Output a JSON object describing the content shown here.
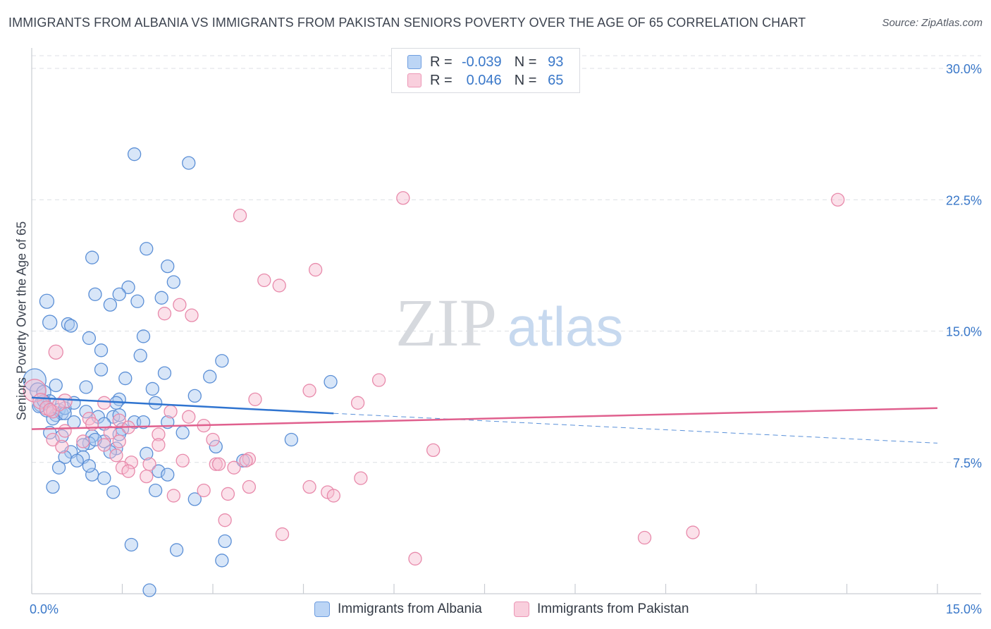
{
  "title": "IMMIGRANTS FROM ALBANIA VS IMMIGRANTS FROM PAKISTAN SENIORS POVERTY OVER THE AGE OF 65 CORRELATION CHART",
  "source": "Source: ZipAtlas.com",
  "watermark": {
    "zip": "ZIP",
    "atlas": "atlas"
  },
  "legend": {
    "series1": {
      "r_label": "R =",
      "r_value": "-0.039",
      "n_label": "N =",
      "n_value": "93"
    },
    "series2": {
      "r_label": "R =",
      "r_value": "0.046",
      "n_label": "N =",
      "n_value": "65"
    }
  },
  "bottom_legend": {
    "albania": "Immigrants from Albania",
    "pakistan": "Immigrants from Pakistan"
  },
  "colors": {
    "albania_fill": "#a8c8f0",
    "albania_stroke": "#5b8fd6",
    "albania_line": "#2f74d0",
    "pakistan_fill": "#f7bcd0",
    "pakistan_stroke": "#e88aab",
    "pakistan_line": "#e0608e",
    "axis_text": "#3a78c9",
    "grid": "#dcdfe4"
  },
  "chart_data": {
    "type": "scatter",
    "title": "IMMIGRANTS FROM ALBANIA VS IMMIGRANTS FROM PAKISTAN SENIORS POVERTY OVER THE AGE OF 65 CORRELATION CHART",
    "xlabel": "",
    "ylabel": "Seniors Poverty Over the Age of 65",
    "xlim": [
      0,
      15
    ],
    "ylim": [
      0,
      30
    ],
    "x_ticks": [
      0,
      1.5,
      3,
      4.5,
      6,
      7.5,
      9,
      10.5,
      12,
      13.5,
      15
    ],
    "x_tick_labels": {
      "0": "0.0%",
      "15": "15.0%"
    },
    "y_ticks": [
      7.5,
      15,
      22.5,
      30
    ],
    "y_tick_labels": [
      "7.5%",
      "15.0%",
      "22.5%",
      "30.0%"
    ],
    "series": [
      {
        "name": "Immigrants from Albania",
        "r": -0.039,
        "n": 93,
        "trend": {
          "x": [
            0,
            5
          ],
          "y": [
            11.2,
            10.3
          ],
          "dashed_to": [
            15,
            8.6
          ]
        },
        "points": [
          [
            0.05,
            12.2,
            16
          ],
          [
            0.1,
            11.6,
            11
          ],
          [
            0.15,
            10.8,
            10
          ],
          [
            0.2,
            11.5,
            10
          ],
          [
            0.25,
            10.5,
            10
          ],
          [
            0.12,
            10.7,
            9
          ],
          [
            0.3,
            11.0,
            9
          ],
          [
            0.35,
            10.4,
            9
          ],
          [
            0.4,
            10.2,
            9
          ],
          [
            0.45,
            10.5,
            9
          ],
          [
            0.5,
            10.3,
            9
          ],
          [
            0.55,
            10.6,
            9
          ],
          [
            1.7,
            25.1,
            9
          ],
          [
            2.6,
            24.6,
            9
          ],
          [
            1.9,
            19.7,
            9
          ],
          [
            1.0,
            19.2,
            9
          ],
          [
            2.25,
            18.7,
            9
          ],
          [
            1.6,
            17.5,
            9
          ],
          [
            2.35,
            17.8,
            9
          ],
          [
            0.25,
            16.7,
            10
          ],
          [
            1.05,
            17.1,
            9
          ],
          [
            1.45,
            17.1,
            9
          ],
          [
            1.75,
            16.7,
            9
          ],
          [
            2.15,
            16.9,
            9
          ],
          [
            1.3,
            16.5,
            9
          ],
          [
            0.3,
            15.5,
            10
          ],
          [
            0.6,
            15.4,
            9
          ],
          [
            0.65,
            15.3,
            9
          ],
          [
            0.95,
            14.6,
            9
          ],
          [
            1.85,
            14.7,
            9
          ],
          [
            1.15,
            13.9,
            9
          ],
          [
            1.8,
            13.6,
            9
          ],
          [
            3.15,
            13.3,
            9
          ],
          [
            1.15,
            12.8,
            9
          ],
          [
            2.2,
            12.6,
            9
          ],
          [
            2.95,
            12.4,
            9
          ],
          [
            1.55,
            12.3,
            9
          ],
          [
            0.4,
            11.9,
            9
          ],
          [
            0.9,
            11.8,
            9
          ],
          [
            2.0,
            11.7,
            9
          ],
          [
            4.95,
            12.1,
            9
          ],
          [
            2.7,
            11.3,
            9
          ],
          [
            1.45,
            11.1,
            9
          ],
          [
            1.4,
            10.9,
            9
          ],
          [
            2.05,
            10.9,
            9
          ],
          [
            0.9,
            10.4,
            9
          ],
          [
            0.55,
            10.3,
            9
          ],
          [
            1.1,
            10.1,
            9
          ],
          [
            1.35,
            10.1,
            9
          ],
          [
            0.35,
            10.0,
            9
          ],
          [
            0.7,
            9.8,
            9
          ],
          [
            1.7,
            9.8,
            9
          ],
          [
            1.85,
            9.8,
            9
          ],
          [
            2.25,
            9.8,
            9
          ],
          [
            1.2,
            9.7,
            9
          ],
          [
            1.5,
            9.4,
            9
          ],
          [
            0.3,
            9.2,
            9
          ],
          [
            0.5,
            9.0,
            9
          ],
          [
            1.0,
            9.0,
            9
          ],
          [
            1.45,
            9.1,
            9
          ],
          [
            1.2,
            8.7,
            9
          ],
          [
            0.95,
            8.6,
            9
          ],
          [
            0.85,
            8.5,
            9
          ],
          [
            1.4,
            8.3,
            9
          ],
          [
            3.05,
            8.4,
            9
          ],
          [
            4.3,
            8.8,
            9
          ],
          [
            0.65,
            8.1,
            9
          ],
          [
            1.3,
            8.1,
            9
          ],
          [
            1.9,
            8.0,
            9
          ],
          [
            0.85,
            7.8,
            9
          ],
          [
            0.55,
            7.8,
            9
          ],
          [
            0.75,
            7.6,
            9
          ],
          [
            3.5,
            7.6,
            9
          ],
          [
            0.45,
            7.2,
            9
          ],
          [
            2.1,
            7.0,
            9
          ],
          [
            1.0,
            6.8,
            9
          ],
          [
            2.25,
            6.8,
            9
          ],
          [
            1.2,
            6.6,
            9
          ],
          [
            0.35,
            6.1,
            9
          ],
          [
            1.35,
            5.8,
            9
          ],
          [
            2.05,
            5.9,
            9
          ],
          [
            2.7,
            5.4,
            9
          ],
          [
            1.65,
            2.8,
            9
          ],
          [
            2.4,
            2.5,
            9
          ],
          [
            3.2,
            3.0,
            9
          ],
          [
            3.15,
            1.9,
            9
          ],
          [
            1.95,
            0.2,
            9
          ],
          [
            1.45,
            10.2,
            9
          ],
          [
            0.2,
            11.0,
            9
          ],
          [
            1.05,
            8.8,
            9
          ],
          [
            0.7,
            10.9,
            9
          ],
          [
            2.5,
            9.2,
            9
          ],
          [
            0.95,
            7.3,
            9
          ]
        ]
      },
      {
        "name": "Immigrants from Pakistan",
        "r": 0.046,
        "n": 65,
        "trend": {
          "x": [
            0,
            15
          ],
          "y": [
            9.4,
            10.6
          ]
        },
        "points": [
          [
            0.05,
            11.6,
            16
          ],
          [
            0.4,
            13.8,
            10
          ],
          [
            0.15,
            11.0,
            11
          ],
          [
            0.25,
            10.6,
            10
          ],
          [
            0.35,
            10.4,
            9
          ],
          [
            0.55,
            11.0,
            10
          ],
          [
            0.45,
            10.8,
            9
          ],
          [
            0.3,
            10.5,
            9
          ],
          [
            6.15,
            22.6,
            9
          ],
          [
            13.35,
            22.5,
            9
          ],
          [
            3.45,
            21.6,
            9
          ],
          [
            4.7,
            18.5,
            9
          ],
          [
            3.85,
            17.9,
            9
          ],
          [
            4.1,
            17.6,
            9
          ],
          [
            2.45,
            16.5,
            9
          ],
          [
            2.2,
            16.0,
            9
          ],
          [
            2.65,
            15.9,
            9
          ],
          [
            5.75,
            12.2,
            9
          ],
          [
            4.6,
            11.6,
            9
          ],
          [
            3.7,
            11.1,
            9
          ],
          [
            5.4,
            10.9,
            9
          ],
          [
            1.2,
            10.9,
            9
          ],
          [
            2.3,
            10.4,
            9
          ],
          [
            2.6,
            10.1,
            9
          ],
          [
            0.95,
            10.0,
            9
          ],
          [
            1.45,
            9.9,
            9
          ],
          [
            2.85,
            9.6,
            9
          ],
          [
            1.0,
            9.7,
            9
          ],
          [
            1.6,
            9.5,
            9
          ],
          [
            0.55,
            9.3,
            9
          ],
          [
            1.3,
            9.2,
            9
          ],
          [
            2.1,
            9.1,
            9
          ],
          [
            3.0,
            8.8,
            9
          ],
          [
            0.35,
            8.8,
            9
          ],
          [
            1.45,
            8.7,
            9
          ],
          [
            0.85,
            8.7,
            9
          ],
          [
            1.2,
            8.5,
            9
          ],
          [
            2.1,
            8.5,
            9
          ],
          [
            6.65,
            8.2,
            9
          ],
          [
            0.5,
            8.4,
            9
          ],
          [
            1.4,
            7.9,
            9
          ],
          [
            3.6,
            7.7,
            9
          ],
          [
            2.5,
            7.6,
            9
          ],
          [
            3.55,
            7.6,
            9
          ],
          [
            1.65,
            7.5,
            9
          ],
          [
            3.05,
            7.4,
            9
          ],
          [
            1.95,
            7.4,
            9
          ],
          [
            3.35,
            7.2,
            9
          ],
          [
            1.5,
            7.2,
            9
          ],
          [
            1.6,
            7.0,
            9
          ],
          [
            1.9,
            6.7,
            9
          ],
          [
            5.45,
            6.6,
            9
          ],
          [
            3.1,
            7.4,
            9
          ],
          [
            3.6,
            6.1,
            9
          ],
          [
            4.6,
            6.1,
            9
          ],
          [
            2.85,
            5.9,
            9
          ],
          [
            3.25,
            5.7,
            9
          ],
          [
            4.9,
            5.8,
            9
          ],
          [
            5.0,
            5.6,
            9
          ],
          [
            2.35,
            5.6,
            9
          ],
          [
            3.2,
            4.2,
            9
          ],
          [
            4.15,
            3.4,
            9
          ],
          [
            10.15,
            3.2,
            9
          ],
          [
            10.95,
            3.5,
            9
          ],
          [
            6.35,
            2.0,
            9
          ]
        ]
      }
    ]
  }
}
